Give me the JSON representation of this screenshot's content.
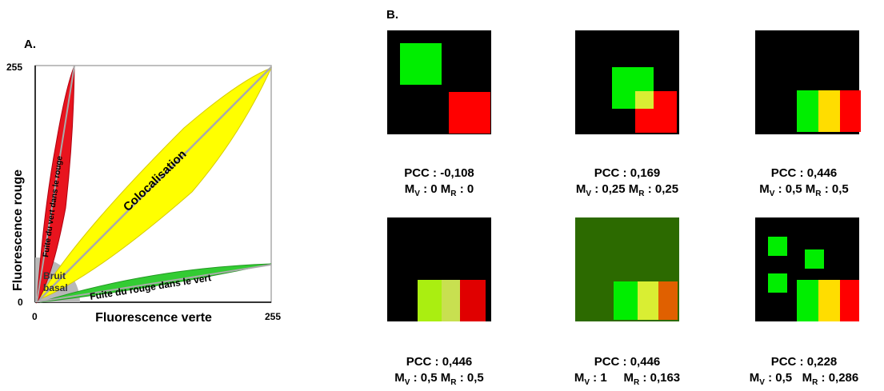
{
  "panel_a": {
    "label": "A.",
    "y_axis_label": "Fluorescence rouge",
    "x_axis_label": "Fluorescence verte",
    "y_tick_top": "255",
    "y_tick_bottom": "0",
    "x_tick_left": "0",
    "x_tick_right": "255",
    "region_red": "Fuite du vert dans le rouge",
    "region_yellow": "Colocalisation",
    "region_green": "Fuite du rouge dans le vert",
    "region_gray_line1": "Bruit",
    "region_gray_line2": "basal",
    "colors": {
      "red": "#e8141e",
      "yellow": "#ffff00",
      "green": "#33cc33",
      "gray": "#b8b8b8"
    }
  },
  "panel_b": {
    "label": "B.",
    "tiles": [
      {
        "pcc": "PCC : -0,108",
        "mv_label": "M",
        "mv_sub": "V",
        "mv_value": " : 0 ",
        "mr_label": "M",
        "mr_sub": "R",
        "mr_value": " : 0"
      },
      {
        "pcc": "PCC : 0,169",
        "mv_label": "M",
        "mv_sub": "V",
        "mv_value": " : 0,25 ",
        "mr_label": "M",
        "mr_sub": "R",
        "mr_value": " : 0,25"
      },
      {
        "pcc": "PCC : 0,446",
        "mv_label": "M",
        "mv_sub": "V",
        "mv_value": " : 0,5 ",
        "mr_label": "M",
        "mr_sub": "R",
        "mr_value": " : 0,5"
      },
      {
        "pcc": "PCC : 0,446",
        "mv_label": "M",
        "mv_sub": "V",
        "mv_value": " : 0,5 ",
        "mr_label": "M",
        "mr_sub": "R",
        "mr_value": " : 0,5"
      },
      {
        "pcc": "PCC : 0,446",
        "mv_label": "M",
        "mv_sub": "V",
        "mv_value": " : 1     ",
        "mr_label": "M",
        "mr_sub": "R",
        "mr_value": " : 0,163"
      },
      {
        "pcc": "PCC : 0,228",
        "mv_label": "M",
        "mv_sub": "V",
        "mv_value": " : 0,5   ",
        "mr_label": "M",
        "mr_sub": "R",
        "mr_value": " : 0,286"
      }
    ],
    "colors": {
      "black": "#000000",
      "green": "#00ee00",
      "red": "#ff0000",
      "yellow": "#ffdd00",
      "overlap": "#d9ee33",
      "olive_bg": "#2c6a00",
      "lime": "#aaee11",
      "pale_lime": "#c8e050",
      "dark_red": "#e00000",
      "orange": "#e06000"
    }
  }
}
